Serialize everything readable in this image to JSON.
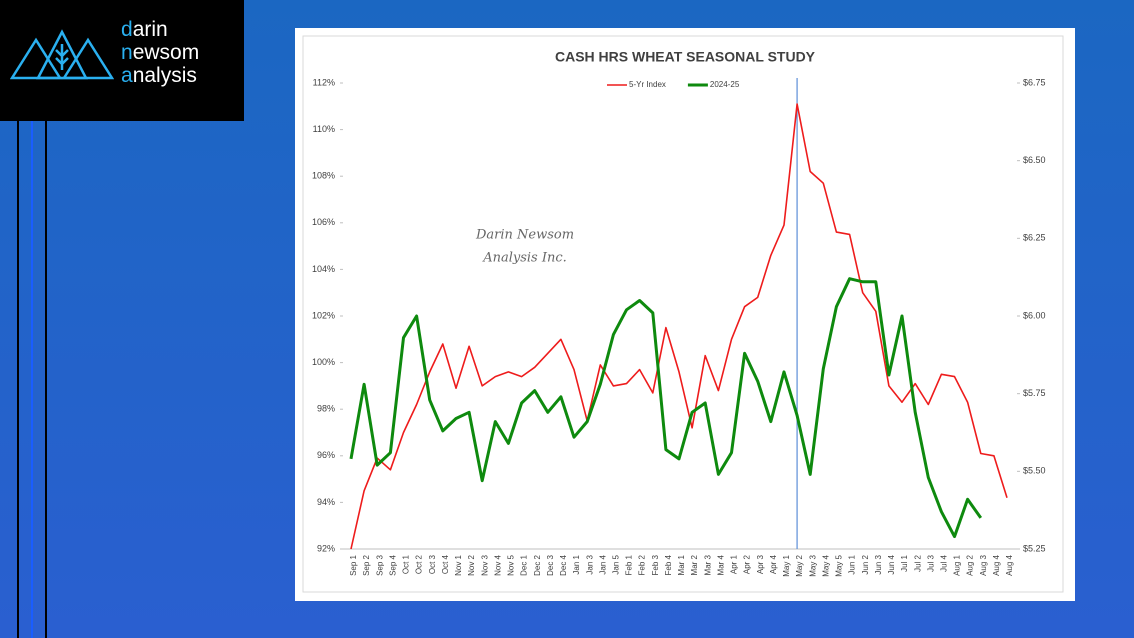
{
  "logo": {
    "lines": [
      "darin",
      "newsom",
      "analysis"
    ]
  },
  "chart_data": {
    "type": "line",
    "title": "CASH HRS WHEAT SEASONAL STUDY",
    "watermark": [
      "Darin Newsom",
      "Analysis Inc."
    ],
    "categories": [
      "Sep 1",
      "Sep 2",
      "Sep 3",
      "Sep 4",
      "Oct 1",
      "Oct 2",
      "Oct 3",
      "Oct 4",
      "Nov 1",
      "Nov 2",
      "Nov 3",
      "Nov 4",
      "Nov 5",
      "Dec 1",
      "Dec 2",
      "Dec 3",
      "Dec 4",
      "Jan 1",
      "Jan 3",
      "Jan 4",
      "Jan 5",
      "Feb 1",
      "Feb 2",
      "Feb 3",
      "Feb 4",
      "Mar 1",
      "Mar 2",
      "Mar 3",
      "Mar 4",
      "Apr 1",
      "Apr 2",
      "Apr 3",
      "Apr 4",
      "May 1",
      "May 2",
      "May 3",
      "May 4",
      "May 5",
      "Jun 1",
      "Jun 2",
      "Jun 3",
      "Jun 4",
      "Jul 1",
      "Jul 2",
      "Jul 3",
      "Jul 4",
      "Aug 1",
      "Aug 2",
      "Aug 3",
      "Aug 4",
      "Aug 4"
    ],
    "series": [
      {
        "name": "5-Yr Index",
        "color": "#ee1c1c",
        "values": [
          92.0,
          94.5,
          95.9,
          95.4,
          97.0,
          98.2,
          99.6,
          100.8,
          98.9,
          100.7,
          99.0,
          99.4,
          99.6,
          99.4,
          99.8,
          100.4,
          101.0,
          99.7,
          97.5,
          99.9,
          99.0,
          99.1,
          99.7,
          98.7,
          101.5,
          99.6,
          97.2,
          100.3,
          98.8,
          101.0,
          102.4,
          102.8,
          104.6,
          105.9,
          111.1,
          108.2,
          107.7,
          105.6,
          105.5,
          103.0,
          102.2,
          99.0,
          98.3,
          99.1,
          98.2,
          99.5,
          99.4,
          98.3,
          96.1,
          96.0,
          94.2
        ]
      },
      {
        "name": "2024-25",
        "color": "#0e8a0e",
        "axis": "y2",
        "values": [
          5.54,
          5.78,
          5.52,
          5.56,
          5.93,
          6.0,
          5.73,
          5.63,
          5.67,
          5.69,
          5.47,
          5.66,
          5.59,
          5.72,
          5.76,
          5.69,
          5.74,
          5.61,
          5.66,
          5.78,
          5.94,
          6.02,
          6.05,
          6.01,
          5.57,
          5.54,
          5.69,
          5.72,
          5.49,
          5.56,
          5.88,
          5.79,
          5.66,
          5.82,
          5.68,
          5.49,
          5.83,
          6.03,
          6.12,
          6.11,
          6.11,
          5.81,
          6.0,
          5.69,
          5.48,
          5.37,
          5.29,
          5.41,
          5.35,
          null,
          null
        ]
      }
    ],
    "ylim": [
      92,
      112
    ],
    "yticks": [
      {
        "value": 92,
        "label": "92%"
      },
      {
        "value": 94,
        "label": "94%"
      },
      {
        "value": 96,
        "label": "96%"
      },
      {
        "value": 98,
        "label": "98%"
      },
      {
        "value": 100,
        "label": "100%"
      },
      {
        "value": 102,
        "label": "102%"
      },
      {
        "value": 104,
        "label": "104%"
      },
      {
        "value": 106,
        "label": "106%"
      },
      {
        "value": 108,
        "label": "108%"
      },
      {
        "value": 110,
        "label": "110%"
      },
      {
        "value": 112,
        "label": "112%"
      }
    ],
    "y2lim": [
      5.25,
      6.75
    ],
    "y2ticks": [
      {
        "value": 5.25,
        "label": "$5.25"
      },
      {
        "value": 5.5,
        "label": "$5.50"
      },
      {
        "value": 5.75,
        "label": "$5.75"
      },
      {
        "value": 6.0,
        "label": "$6.00"
      },
      {
        "value": 6.25,
        "label": "$6.25"
      },
      {
        "value": 6.5,
        "label": "$6.50"
      },
      {
        "value": 6.75,
        "label": "$6.75"
      }
    ],
    "vertical_line_at": "May 2",
    "vertical_line_color": "#5b8fd8",
    "legend": "top"
  }
}
